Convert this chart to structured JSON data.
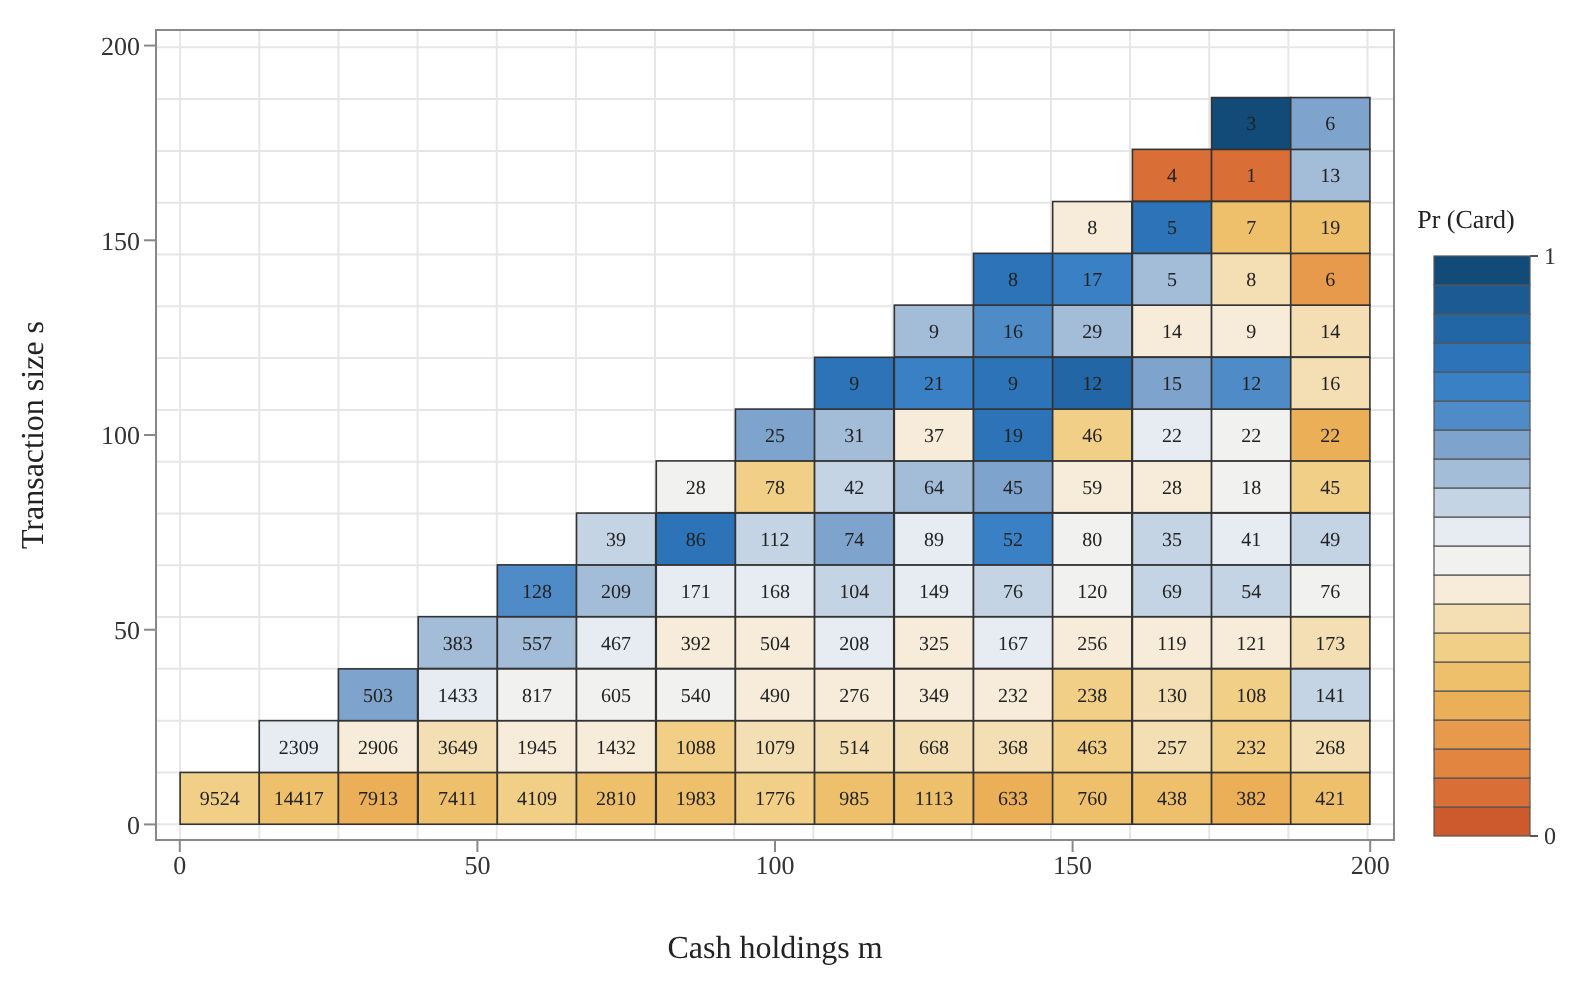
{
  "chart_data": {
    "type": "scatter",
    "marker": "square",
    "xlabel": "Cash holdings m",
    "ylabel": "Transaction size s",
    "clabel": "Pr (Card)",
    "x": [
      6.7,
      20,
      33.3,
      46.7,
      60,
      73.3,
      86.7,
      100,
      113.3,
      126.7,
      140,
      153.3,
      166.7,
      180,
      193.3,
      20,
      33.3,
      46.7,
      60,
      73.3,
      86.7,
      100,
      113.3,
      126.7,
      140,
      153.3,
      166.7,
      180,
      193.3,
      33.3,
      46.7,
      60,
      73.3,
      86.7,
      100,
      113.3,
      126.7,
      140,
      153.3,
      166.7,
      180,
      193.3,
      46.7,
      60,
      73.3,
      86.7,
      100,
      113.3,
      126.7,
      140,
      153.3,
      166.7,
      180,
      193.3,
      60,
      73.3,
      86.7,
      100,
      113.3,
      126.7,
      140,
      153.3,
      166.7,
      180,
      193.3,
      73.3,
      86.7,
      100,
      113.3,
      126.7,
      140,
      153.3,
      166.7,
      180,
      193.3,
      86.7,
      100,
      113.3,
      126.7,
      140,
      153.3,
      166.7,
      180,
      193.3,
      100,
      113.3,
      126.7,
      140,
      153.3,
      166.7,
      180,
      193.3,
      113.3,
      126.7,
      140,
      153.3,
      166.7,
      180,
      193.3,
      126.7,
      140,
      153.3,
      166.7,
      180,
      193.3,
      140,
      153.3,
      166.7,
      180,
      193.3,
      153.3,
      166.7,
      180,
      193.3,
      166.7,
      180,
      193.3,
      180,
      193.3
    ],
    "values": [
      6.7,
      6.7,
      6.7,
      6.7,
      6.7,
      6.7,
      6.7,
      6.7,
      6.7,
      6.7,
      6.7,
      6.7,
      6.7,
      6.7,
      6.7,
      20,
      20,
      20,
      20,
      20,
      20,
      20,
      20,
      20,
      20,
      20,
      20,
      20,
      20,
      33.3,
      33.3,
      33.3,
      33.3,
      33.3,
      33.3,
      33.3,
      33.3,
      33.3,
      33.3,
      33.3,
      33.3,
      33.3,
      46.7,
      46.7,
      46.7,
      46.7,
      46.7,
      46.7,
      46.7,
      46.7,
      46.7,
      46.7,
      46.7,
      46.7,
      60,
      60,
      60,
      60,
      60,
      60,
      60,
      60,
      60,
      60,
      60,
      73.3,
      73.3,
      73.3,
      73.3,
      73.3,
      73.3,
      73.3,
      73.3,
      73.3,
      73.3,
      86.7,
      86.7,
      86.7,
      86.7,
      86.7,
      86.7,
      86.7,
      86.7,
      86.7,
      100,
      100,
      100,
      100,
      100,
      100,
      100,
      100,
      113.3,
      113.3,
      113.3,
      113.3,
      113.3,
      113.3,
      113.3,
      126.7,
      126.7,
      126.7,
      126.7,
      126.7,
      126.7,
      140,
      140,
      140,
      140,
      140,
      153.3,
      153.3,
      153.3,
      153.3,
      166.7,
      166.7,
      166.7,
      180,
      180
    ],
    "cvalues": [
      0.33,
      0.28,
      0.23,
      0.28,
      0.33,
      0.28,
      0.28,
      0.33,
      0.28,
      0.28,
      0.22,
      0.28,
      0.28,
      0.23,
      0.28,
      0.52,
      0.42,
      0.38,
      0.42,
      0.42,
      0.33,
      0.38,
      0.38,
      0.38,
      0.38,
      0.33,
      0.38,
      0.33,
      0.38,
      0.67,
      0.52,
      0.48,
      0.48,
      0.47,
      0.42,
      0.42,
      0.42,
      0.42,
      0.33,
      0.38,
      0.33,
      0.57,
      0.62,
      0.62,
      0.52,
      0.42,
      0.42,
      0.52,
      0.42,
      0.52,
      0.42,
      0.42,
      0.42,
      0.38,
      0.72,
      0.62,
      0.52,
      0.52,
      0.57,
      0.52,
      0.57,
      0.47,
      0.57,
      0.57,
      0.47,
      0.57,
      0.82,
      0.57,
      0.67,
      0.52,
      0.77,
      0.48,
      0.57,
      0.52,
      0.57,
      0.47,
      0.33,
      0.57,
      0.62,
      0.67,
      0.42,
      0.42,
      0.47,
      0.33,
      0.67,
      0.62,
      0.42,
      0.82,
      0.32,
      0.52,
      0.47,
      0.22,
      0.82,
      0.77,
      0.82,
      0.87,
      0.67,
      0.72,
      0.38,
      0.62,
      0.72,
      0.62,
      0.42,
      0.42,
      0.38,
      0.82,
      0.77,
      0.62,
      0.38,
      0.17,
      0.42,
      0.82,
      0.28,
      0.28,
      0.07,
      0.07,
      0.62,
      0.97,
      0.65
    ],
    "annotations": [
      {
        "text": "9524",
        "x": 6.7,
        "y": 6.7
      },
      {
        "text": "14417",
        "x": 20,
        "y": 6.7
      },
      {
        "text": "7913",
        "x": 33.3,
        "y": 6.7
      },
      {
        "text": "7411",
        "x": 46.7,
        "y": 6.7
      },
      {
        "text": "4109",
        "x": 60,
        "y": 6.7
      },
      {
        "text": "2810",
        "x": 73.3,
        "y": 6.7
      },
      {
        "text": "1983",
        "x": 86.7,
        "y": 6.7
      },
      {
        "text": "1776",
        "x": 100,
        "y": 6.7
      },
      {
        "text": "985",
        "x": 113.3,
        "y": 6.7
      },
      {
        "text": "1113",
        "x": 126.7,
        "y": 6.7
      },
      {
        "text": "633",
        "x": 140,
        "y": 6.7
      },
      {
        "text": "760",
        "x": 153.3,
        "y": 6.7
      },
      {
        "text": "438",
        "x": 166.7,
        "y": 6.7
      },
      {
        "text": "382",
        "x": 180,
        "y": 6.7
      },
      {
        "text": "421",
        "x": 193.3,
        "y": 6.7
      },
      {
        "text": "2309",
        "x": 20,
        "y": 20
      },
      {
        "text": "2906",
        "x": 33.3,
        "y": 20
      },
      {
        "text": "3649",
        "x": 46.7,
        "y": 20
      },
      {
        "text": "1945",
        "x": 60,
        "y": 20
      },
      {
        "text": "1432",
        "x": 73.3,
        "y": 20
      },
      {
        "text": "1088",
        "x": 86.7,
        "y": 20
      },
      {
        "text": "1079",
        "x": 100,
        "y": 20
      },
      {
        "text": "514",
        "x": 113.3,
        "y": 20
      },
      {
        "text": "668",
        "x": 126.7,
        "y": 20
      },
      {
        "text": "368",
        "x": 140,
        "y": 20
      },
      {
        "text": "463",
        "x": 153.3,
        "y": 20
      },
      {
        "text": "257",
        "x": 166.7,
        "y": 20
      },
      {
        "text": "232",
        "x": 180,
        "y": 20
      },
      {
        "text": "268",
        "x": 193.3,
        "y": 20
      },
      {
        "text": "503",
        "x": 33.3,
        "y": 33.3
      },
      {
        "text": "1433",
        "x": 46.7,
        "y": 33.3
      },
      {
        "text": "817",
        "x": 60,
        "y": 33.3
      },
      {
        "text": "605",
        "x": 73.3,
        "y": 33.3
      },
      {
        "text": "540",
        "x": 86.7,
        "y": 33.3
      },
      {
        "text": "490",
        "x": 100,
        "y": 33.3
      },
      {
        "text": "276",
        "x": 113.3,
        "y": 33.3
      },
      {
        "text": "349",
        "x": 126.7,
        "y": 33.3
      },
      {
        "text": "232",
        "x": 140,
        "y": 33.3
      },
      {
        "text": "238",
        "x": 153.3,
        "y": 33.3
      },
      {
        "text": "130",
        "x": 166.7,
        "y": 33.3
      },
      {
        "text": "108",
        "x": 180,
        "y": 33.3
      },
      {
        "text": "141",
        "x": 193.3,
        "y": 33.3
      },
      {
        "text": "383",
        "x": 46.7,
        "y": 46.7
      },
      {
        "text": "557",
        "x": 60,
        "y": 46.7
      },
      {
        "text": "467",
        "x": 73.3,
        "y": 46.7
      },
      {
        "text": "392",
        "x": 86.7,
        "y": 46.7
      },
      {
        "text": "504",
        "x": 100,
        "y": 46.7
      },
      {
        "text": "208",
        "x": 113.3,
        "y": 46.7
      },
      {
        "text": "325",
        "x": 126.7,
        "y": 46.7
      },
      {
        "text": "167",
        "x": 140,
        "y": 46.7
      },
      {
        "text": "256",
        "x": 153.3,
        "y": 46.7
      },
      {
        "text": "119",
        "x": 166.7,
        "y": 46.7
      },
      {
        "text": "121",
        "x": 180,
        "y": 46.7
      },
      {
        "text": "173",
        "x": 193.3,
        "y": 46.7
      },
      {
        "text": "128",
        "x": 60,
        "y": 60
      },
      {
        "text": "209",
        "x": 73.3,
        "y": 60
      },
      {
        "text": "171",
        "x": 86.7,
        "y": 60
      },
      {
        "text": "168",
        "x": 100,
        "y": 60
      },
      {
        "text": "104",
        "x": 113.3,
        "y": 60
      },
      {
        "text": "149",
        "x": 126.7,
        "y": 60
      },
      {
        "text": "76",
        "x": 140,
        "y": 60
      },
      {
        "text": "120",
        "x": 153.3,
        "y": 60
      },
      {
        "text": "69",
        "x": 166.7,
        "y": 60
      },
      {
        "text": "54",
        "x": 180,
        "y": 60
      },
      {
        "text": "76",
        "x": 193.3,
        "y": 60
      },
      {
        "text": "39",
        "x": 73.3,
        "y": 73.3
      },
      {
        "text": "86",
        "x": 86.7,
        "y": 73.3
      },
      {
        "text": "112",
        "x": 100,
        "y": 73.3
      },
      {
        "text": "74",
        "x": 113.3,
        "y": 73.3
      },
      {
        "text": "89",
        "x": 126.7,
        "y": 73.3
      },
      {
        "text": "52",
        "x": 140,
        "y": 73.3
      },
      {
        "text": "80",
        "x": 153.3,
        "y": 73.3
      },
      {
        "text": "35",
        "x": 166.7,
        "y": 73.3
      },
      {
        "text": "41",
        "x": 180,
        "y": 73.3
      },
      {
        "text": "49",
        "x": 193.3,
        "y": 73.3
      },
      {
        "text": "28",
        "x": 86.7,
        "y": 86.7
      },
      {
        "text": "78",
        "x": 100,
        "y": 86.7
      },
      {
        "text": "42",
        "x": 113.3,
        "y": 86.7
      },
      {
        "text": "64",
        "x": 126.7,
        "y": 86.7
      },
      {
        "text": "45",
        "x": 140,
        "y": 86.7
      },
      {
        "text": "59",
        "x": 153.3,
        "y": 86.7
      },
      {
        "text": "28",
        "x": 166.7,
        "y": 86.7
      },
      {
        "text": "18",
        "x": 180,
        "y": 86.7
      },
      {
        "text": "45",
        "x": 193.3,
        "y": 86.7
      },
      {
        "text": "25",
        "x": 100,
        "y": 100
      },
      {
        "text": "31",
        "x": 113.3,
        "y": 100
      },
      {
        "text": "37",
        "x": 126.7,
        "y": 100
      },
      {
        "text": "19",
        "x": 140,
        "y": 100
      },
      {
        "text": "46",
        "x": 153.3,
        "y": 100
      },
      {
        "text": "22",
        "x": 166.7,
        "y": 100
      },
      {
        "text": "22",
        "x": 180,
        "y": 100
      },
      {
        "text": "22",
        "x": 193.3,
        "y": 100
      },
      {
        "text": "9",
        "x": 113.3,
        "y": 113.3
      },
      {
        "text": "21",
        "x": 126.7,
        "y": 113.3
      },
      {
        "text": "9",
        "x": 140,
        "y": 113.3
      },
      {
        "text": "12",
        "x": 153.3,
        "y": 113.3
      },
      {
        "text": "15",
        "x": 166.7,
        "y": 113.3
      },
      {
        "text": "12",
        "x": 180,
        "y": 113.3
      },
      {
        "text": "16",
        "x": 193.3,
        "y": 113.3
      },
      {
        "text": "9",
        "x": 126.7,
        "y": 126.7
      },
      {
        "text": "16",
        "x": 140,
        "y": 126.7
      },
      {
        "text": "29",
        "x": 153.3,
        "y": 126.7
      },
      {
        "text": "14",
        "x": 166.7,
        "y": 126.7
      },
      {
        "text": "9",
        "x": 180,
        "y": 126.7
      },
      {
        "text": "14",
        "x": 193.3,
        "y": 126.7
      },
      {
        "text": "8",
        "x": 140,
        "y": 140
      },
      {
        "text": "17",
        "x": 153.3,
        "y": 140
      },
      {
        "text": "5",
        "x": 166.7,
        "y": 140
      },
      {
        "text": "8",
        "x": 180,
        "y": 140
      },
      {
        "text": "6",
        "x": 193.3,
        "y": 140
      },
      {
        "text": "8",
        "x": 153.3,
        "y": 153.3
      },
      {
        "text": "5",
        "x": 166.7,
        "y": 153.3
      },
      {
        "text": "7",
        "x": 180,
        "y": 153.3
      },
      {
        "text": "19",
        "x": 193.3,
        "y": 153.3
      },
      {
        "text": "4",
        "x": 166.7,
        "y": 166.7
      },
      {
        "text": "1",
        "x": 180,
        "y": 166.7
      },
      {
        "text": "13",
        "x": 193.3,
        "y": 166.7
      },
      {
        "text": "3",
        "x": 180,
        "y": 180
      },
      {
        "text": "6",
        "x": 193.3,
        "y": 180
      }
    ],
    "clim": [
      0,
      1
    ],
    "cticks": [
      0,
      1
    ],
    "xlim": [
      -4,
      204
    ],
    "ylim": [
      -4,
      204
    ],
    "xticks": [
      0,
      50,
      100,
      150,
      200
    ],
    "yticks": [
      0,
      50,
      100,
      150,
      200
    ],
    "grid": true
  }
}
